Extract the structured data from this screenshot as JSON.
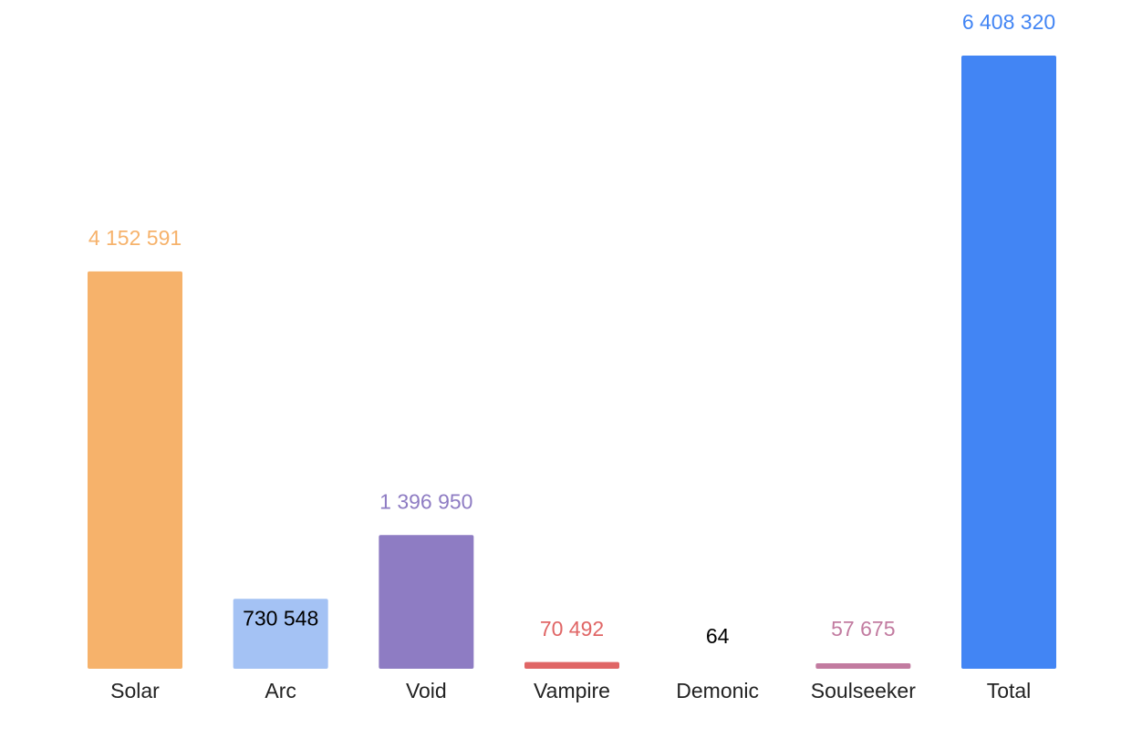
{
  "chart_data": {
    "type": "bar",
    "categories": [
      "Solar",
      "Arc",
      "Void",
      "Vampire",
      "Demonic",
      "Soulseeker",
      "Total"
    ],
    "values": [
      4152591,
      730548,
      1396950,
      70492,
      64,
      57675,
      6408320
    ],
    "value_labels": [
      "4 152 591",
      "730 548",
      "1 396 950",
      "70 492",
      "64",
      "57 675",
      "6 408 320"
    ],
    "colors": [
      "#f6b26b",
      "#a4c2f4",
      "#8e7cc3",
      "#e06666",
      "#000000",
      "#c27ba0",
      "#4285f4"
    ],
    "label_colors": [
      "#f6b26b",
      "#000000",
      "#8e7cc3",
      "#e06666",
      "#000000",
      "#c27ba0",
      "#4285f4"
    ],
    "title": "",
    "xlabel": "",
    "ylabel": "",
    "ylim": [
      0,
      6408320
    ],
    "grid": false,
    "legend": "none"
  }
}
